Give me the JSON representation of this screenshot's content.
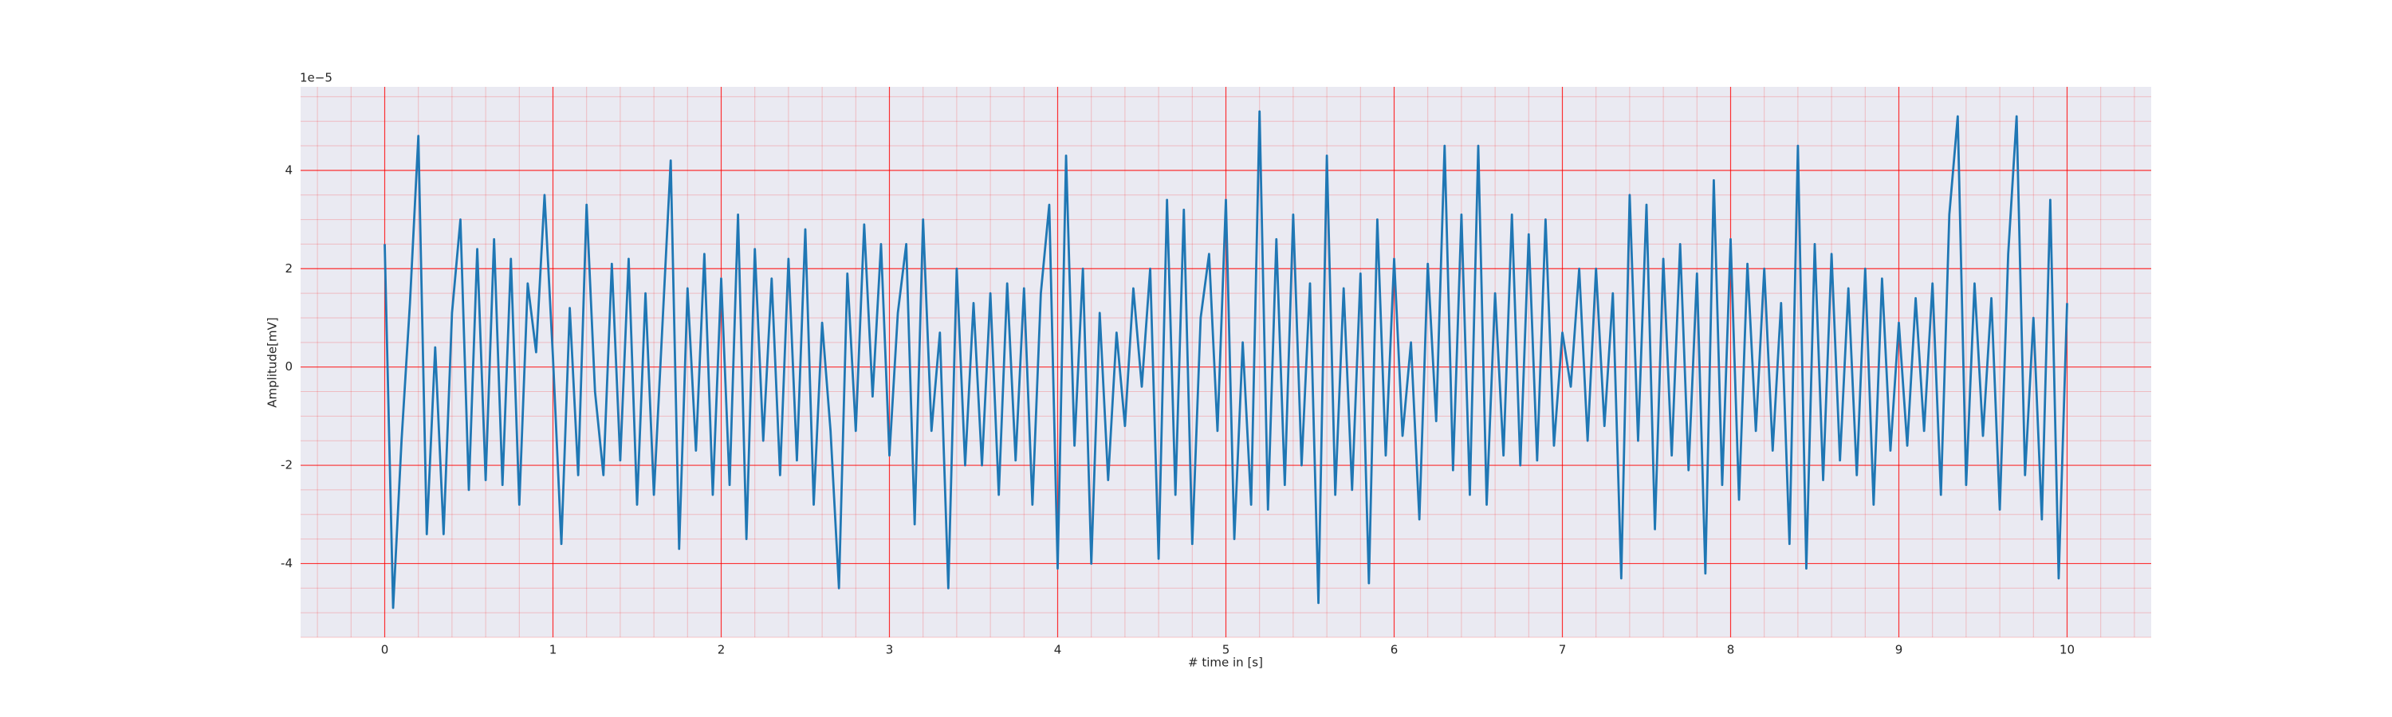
{
  "chart_data": {
    "type": "line",
    "xlabel": "# time in [s]",
    "ylabel": "Amplitude[mV]",
    "y_offset_label": "1e−5",
    "x": [
      0,
      0.05,
      0.1,
      0.15,
      0.2,
      0.25,
      0.3,
      0.35,
      0.4,
      0.45,
      0.5,
      0.55,
      0.6,
      0.65,
      0.7,
      0.75,
      0.8,
      0.85,
      0.9,
      0.95,
      1,
      1.05,
      1.1,
      1.15,
      1.2,
      1.25,
      1.3,
      1.35,
      1.4,
      1.45,
      1.5,
      1.55,
      1.6,
      1.65,
      1.7,
      1.75,
      1.8,
      1.85,
      1.9,
      1.95,
      2,
      2.05,
      2.1,
      2.15,
      2.2,
      2.25,
      2.3,
      2.35,
      2.4,
      2.45,
      2.5,
      2.55,
      2.6,
      2.65,
      2.7,
      2.75,
      2.8,
      2.85,
      2.9,
      2.95,
      3,
      3.05,
      3.1,
      3.15,
      3.2,
      3.25,
      3.3,
      3.35,
      3.4,
      3.45,
      3.5,
      3.55,
      3.6,
      3.65,
      3.7,
      3.75,
      3.8,
      3.85,
      3.9,
      3.95,
      4,
      4.05,
      4.1,
      4.15,
      4.2,
      4.25,
      4.3,
      4.35,
      4.4,
      4.45,
      4.5,
      4.55,
      4.6,
      4.65,
      4.7,
      4.75,
      4.8,
      4.85,
      4.9,
      4.95,
      5,
      5.05,
      5.1,
      5.15,
      5.2,
      5.25,
      5.3,
      5.35,
      5.4,
      5.45,
      5.5,
      5.55,
      5.6,
      5.65,
      5.7,
      5.75,
      5.8,
      5.85,
      5.9,
      5.95,
      6,
      6.05,
      6.1,
      6.15,
      6.2,
      6.25,
      6.3,
      6.35,
      6.4,
      6.45,
      6.5,
      6.55,
      6.6,
      6.65,
      6.7,
      6.75,
      6.8,
      6.85,
      6.9,
      6.95,
      7,
      7.05,
      7.1,
      7.15,
      7.2,
      7.25,
      7.3,
      7.35,
      7.4,
      7.45,
      7.5,
      7.55,
      7.6,
      7.65,
      7.7,
      7.75,
      7.8,
      7.85,
      7.9,
      7.95,
      8,
      8.05,
      8.1,
      8.15,
      8.2,
      8.25,
      8.3,
      8.35,
      8.4,
      8.45,
      8.5,
      8.55,
      8.6,
      8.65,
      8.7,
      8.75,
      8.8,
      8.85,
      8.9,
      8.95,
      9,
      9.05,
      9.1,
      9.15,
      9.2,
      9.25,
      9.3,
      9.35,
      9.4,
      9.45,
      9.5,
      9.55,
      9.6,
      9.65,
      9.7,
      9.75,
      9.8,
      9.85,
      9.9,
      9.95,
      10
    ],
    "series": [
      {
        "color": "#1f77b4",
        "values": [
          2.5,
          -4.9,
          -1.5,
          1.3,
          4.7,
          -3.4,
          0.4,
          -3.4,
          1.1,
          3.0,
          -2.5,
          2.4,
          -2.3,
          2.6,
          -2.4,
          2.2,
          -2.8,
          1.7,
          0.3,
          3.5,
          0.2,
          -3.6,
          1.2,
          -2.2,
          3.3,
          -0.5,
          -2.2,
          2.1,
          -1.9,
          2.2,
          -2.8,
          1.5,
          -2.6,
          0.8,
          4.2,
          -3.7,
          1.6,
          -1.7,
          2.3,
          -2.6,
          1.8,
          -2.4,
          3.1,
          -3.5,
          2.4,
          -1.5,
          1.8,
          -2.2,
          2.2,
          -1.9,
          2.8,
          -2.8,
          0.9,
          -1.3,
          -4.5,
          1.9,
          -1.3,
          2.9,
          -0.6,
          2.5,
          -1.8,
          1.1,
          2.5,
          -3.2,
          3.0,
          -1.3,
          0.7,
          -4.5,
          2.0,
          -2.0,
          1.3,
          -2.0,
          1.5,
          -2.6,
          1.7,
          -1.9,
          1.6,
          -2.8,
          1.5,
          3.3,
          -4.1,
          4.3,
          -1.6,
          2.0,
          -4.0,
          1.1,
          -2.3,
          0.7,
          -1.2,
          1.6,
          -0.4,
          2.0,
          -3.9,
          3.4,
          -2.6,
          3.2,
          -3.6,
          1.0,
          2.3,
          -1.3,
          3.4,
          -3.5,
          0.5,
          -2.8,
          5.2,
          -2.9,
          2.6,
          -2.4,
          3.1,
          -2.0,
          1.7,
          -4.8,
          4.3,
          -2.6,
          1.6,
          -2.5,
          1.9,
          -4.4,
          3.0,
          -1.8,
          2.2,
          -1.4,
          0.5,
          -3.1,
          2.1,
          -1.1,
          4.5,
          -2.1,
          3.1,
          -2.6,
          4.5,
          -2.8,
          1.5,
          -1.8,
          3.1,
          -2.0,
          2.7,
          -1.9,
          3.0,
          -1.6,
          0.7,
          -0.4,
          2.0,
          -1.5,
          2.0,
          -1.2,
          1.5,
          -4.3,
          3.5,
          -1.5,
          3.3,
          -3.3,
          2.2,
          -1.8,
          2.5,
          -2.1,
          1.9,
          -4.2,
          3.8,
          -2.4,
          2.6,
          -2.7,
          2.1,
          -1.3,
          2.0,
          -1.7,
          1.3,
          -3.6,
          4.5,
          -4.1,
          2.5,
          -2.3,
          2.3,
          -1.9,
          1.6,
          -2.2,
          2.0,
          -2.8,
          1.8,
          -1.7,
          0.9,
          -1.6,
          1.4,
          -1.3,
          1.7,
          -2.6,
          3.1,
          5.1,
          -2.4,
          1.7,
          -1.4,
          1.4,
          -2.9,
          2.3,
          5.1,
          -2.2,
          1.0,
          -3.1,
          3.4,
          -4.3,
          1.3
        ]
      }
    ],
    "xlim": [
      -0.5,
      10.5
    ],
    "ylim": [
      -5.5,
      5.7
    ],
    "xticks": [
      0,
      1,
      2,
      3,
      4,
      5,
      6,
      7,
      8,
      9,
      10
    ],
    "yticks": [
      -4,
      -2,
      0,
      2,
      4
    ],
    "grid": true,
    "minor_grid": true,
    "grid_color": "#ff0000",
    "background": "#eaeaf2"
  }
}
